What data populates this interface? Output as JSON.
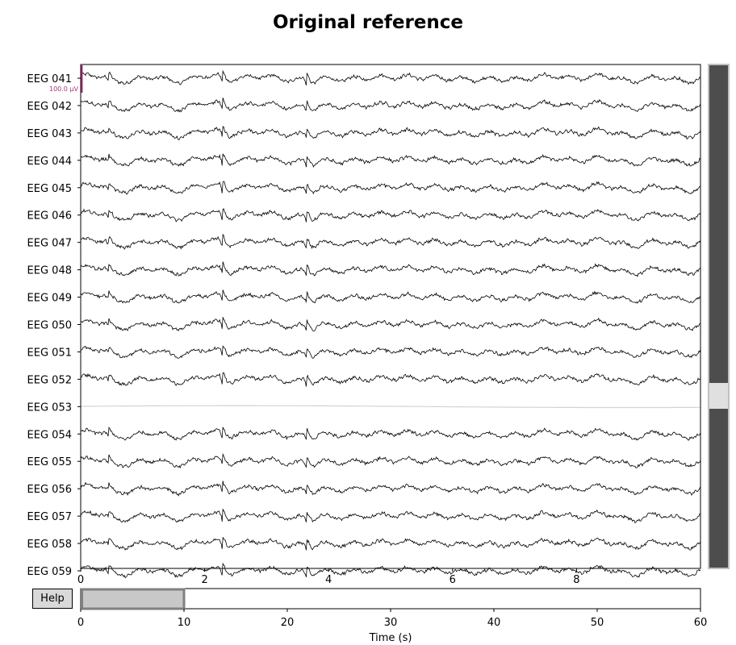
{
  "chart_data": {
    "type": "line",
    "title": "Original reference",
    "main_plot": {
      "xlim": [
        0,
        10
      ],
      "xticks": [
        0,
        2,
        4,
        6,
        8
      ],
      "channels": [
        "EEG 041",
        "EEG 042",
        "EEG 043",
        "EEG 044",
        "EEG 045",
        "EEG 046",
        "EEG 047",
        "EEG 048",
        "EEG 049",
        "EEG 050",
        "EEG 051",
        "EEG 052",
        "EEG 053",
        "EEG 054",
        "EEG 055",
        "EEG 056",
        "EEG 057",
        "EEG 058",
        "EEG 059"
      ],
      "bad_channels": [
        "EEG 053"
      ],
      "artifact_times": [
        0.45,
        2.28,
        3.64
      ],
      "scale_bar_label": "100.0 µV"
    },
    "overview": {
      "xlabel": "Time (s)",
      "xlim": [
        0,
        60
      ],
      "xticks": [
        0,
        10,
        20,
        30,
        40,
        50,
        60
      ],
      "window": [
        0,
        10
      ]
    },
    "colors": {
      "trace": "#000000",
      "bad_trace": "#d3d3d3",
      "scale_bar": "#aa3377",
      "scrollbar_track": "#4d4d4d",
      "scrollbar_thumb": "#e0e0e0",
      "selection_fill": "#c8c8c8"
    }
  },
  "controls": {
    "help_label": "Help"
  }
}
